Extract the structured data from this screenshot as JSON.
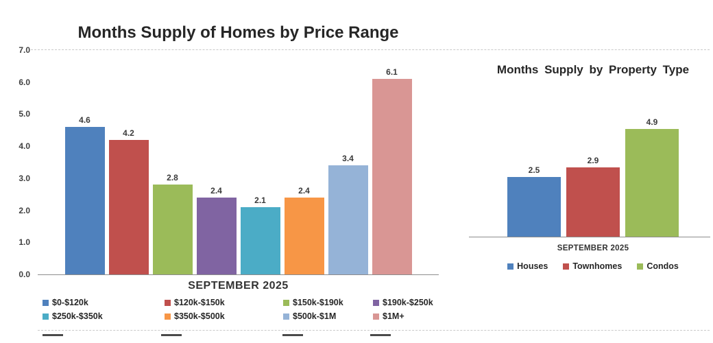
{
  "chart_data": [
    {
      "type": "bar",
      "title": "Months Supply of Homes by Price Range",
      "xlabel": "SEPTEMBER 2025",
      "ylabel": "",
      "ylim": [
        0,
        7
      ],
      "yticks": [
        0,
        1,
        2,
        3,
        4,
        5,
        6,
        7
      ],
      "ytick_format": "one-decimal",
      "grid": "top dashed gridline only",
      "legend_position": "bottom-two-rows",
      "categories": [
        "$0-$120k",
        "$120k-$150k",
        "$150k-$190k",
        "$190k-$250k",
        "$250k-$350k",
        "$350k-$500k",
        "$500k-$1M",
        "$1M+"
      ],
      "values": [
        4.6,
        4.2,
        2.8,
        2.4,
        2.1,
        2.4,
        3.4,
        6.1
      ],
      "colors": [
        "#4F81BD",
        "#C0504D",
        "#9BBB59",
        "#8064A2",
        "#4BACC6",
        "#F79646",
        "#95B3D7",
        "#D99694"
      ]
    },
    {
      "type": "bar",
      "title": "Months Supply by Property Type",
      "xlabel": "SEPTEMBER 2025",
      "ylabel": "",
      "ylim": [
        0,
        5
      ],
      "yticks": [],
      "grid": "off",
      "legend_position": "bottom-single-row",
      "categories": [
        "Houses",
        "Townhomes",
        "Condos"
      ],
      "values": [
        2.5,
        2.9,
        4.9
      ],
      "colors": [
        "#4F81BD",
        "#C0504D",
        "#9BBB59"
      ]
    }
  ]
}
